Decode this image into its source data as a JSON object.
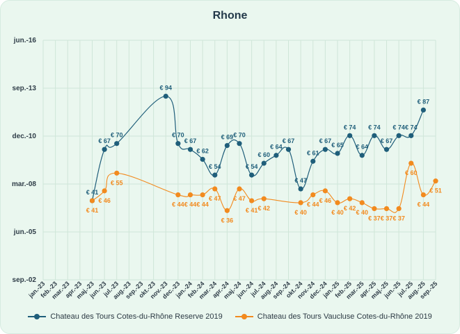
{
  "chart_data": {
    "type": "line",
    "title": "Rhone",
    "y_ticks": [
      "jun.-16",
      "sep.-13",
      "dec.-10",
      "mar.-08",
      "jun.-05",
      "sep.-02"
    ],
    "categories": [
      "jan.-23",
      "feb.-23",
      "mar.-23",
      "apr.-23",
      "maj.-23",
      "jun.-23",
      "jul.-23",
      "aug.-23",
      "sep.-23",
      "okt.-23",
      "nov.-23",
      "dec.-23",
      "jan.-24",
      "feb.-24",
      "mar.-24",
      "apr.-24",
      "maj.-24",
      "jun.-24",
      "jul.-24",
      "aug.-24",
      "sep.-24",
      "okt.-24",
      "nov.-24",
      "dec.-24",
      "jan.-25",
      "feb.-25",
      "mar.-25",
      "apr.-25",
      "maj.-25",
      "jun.-25",
      "jul.-25",
      "aug.-25",
      "sep.-25"
    ],
    "grid": true,
    "legend_position": "bottom",
    "series": [
      {
        "name": "Chateau des Tours Cotes-du-Rhône Reserve 2019",
        "color": "#1f5e7a",
        "values": [
          null,
          null,
          null,
          null,
          41,
          67,
          70,
          null,
          null,
          null,
          94,
          70,
          67,
          62,
          54,
          69,
          70,
          54,
          60,
          64,
          67,
          47,
          61,
          67,
          65,
          74,
          64,
          74,
          67,
          74,
          74,
          87,
          null
        ],
        "labels": [
          null,
          null,
          null,
          null,
          "€ 41",
          "€ 67",
          "€ 70",
          null,
          null,
          null,
          "€ 94",
          "€ 70",
          "€ 67",
          "€ 62",
          "€ 54",
          "€ 69",
          "€ 70",
          "€ 54",
          "€ 60",
          "€ 64",
          "€ 67",
          "€ 47",
          "€ 61",
          "€ 67",
          "€ 65",
          "€ 74",
          "€ 64",
          "€ 74",
          "€ 67",
          "€ 74",
          "€ 74",
          "€ 87",
          null
        ]
      },
      {
        "name": "Chateau des Tours Vaucluse Cotes-du-Rhône 2019",
        "color": "#f28a1e",
        "values": [
          null,
          null,
          null,
          null,
          41,
          46,
          55,
          null,
          null,
          null,
          null,
          44,
          44,
          44,
          47,
          36,
          47,
          41,
          42,
          null,
          null,
          40,
          44,
          46,
          40,
          42,
          40,
          37,
          37,
          37,
          60,
          44,
          51
        ],
        "labels": [
          null,
          null,
          null,
          null,
          "€ 41",
          "€ 46",
          "€ 55",
          null,
          null,
          null,
          null,
          "€ 44",
          "€ 44",
          "€ 44",
          "€ 47",
          "€ 36",
          "€ 47",
          "€ 41",
          "€ 42",
          null,
          null,
          "€ 40",
          "€ 44",
          "€ 46",
          "€ 40",
          "€ 42",
          "€ 40",
          "€ 37",
          "€ 37",
          "€ 37",
          "€ 60",
          "€ 44",
          "€ 51"
        ]
      }
    ]
  }
}
